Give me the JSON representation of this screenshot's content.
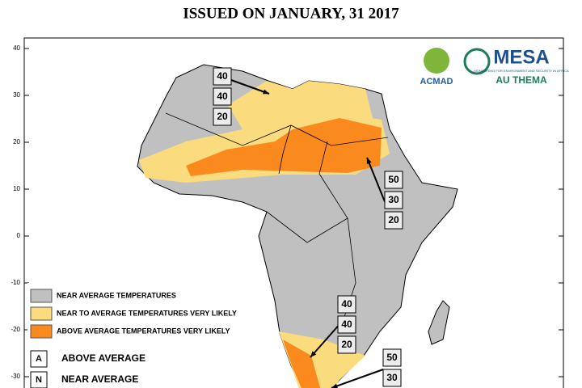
{
  "title": "ISSUED ON JANUARY, 31 2017",
  "map": {
    "latitude_ticks": [
      40,
      30,
      20,
      10,
      0,
      -10,
      -20,
      -30
    ]
  },
  "legend": {
    "colors": [
      {
        "label": "NEAR AVERAGE TEMPERATURES",
        "color": "#c0c0c0"
      },
      {
        "label": "NEAR TO  AVERAGE TEMPERATURES VERY LIKELY",
        "color": "#fadc7e"
      },
      {
        "label": "ABOVE AVERAGE TEMPERATURES VERY LIKELY",
        "color": "#fa8a1e"
      }
    ],
    "letters": [
      {
        "letter": "A",
        "label": "ABOVE AVERAGE"
      },
      {
        "letter": "N",
        "label": "NEAR AVERAGE"
      }
    ]
  },
  "probability_boxes": [
    [
      40,
      40,
      20
    ],
    [
      50,
      30,
      20
    ],
    [
      40,
      40,
      20
    ],
    [
      50,
      30
    ]
  ],
  "logos": {
    "acmad": "ACMAD",
    "mesa": "MESA",
    "mesa_subtitle": "MONITORING FOR ENVIRONMENT AND SECURITY IN AFRICA",
    "au": "AU THEMA"
  }
}
